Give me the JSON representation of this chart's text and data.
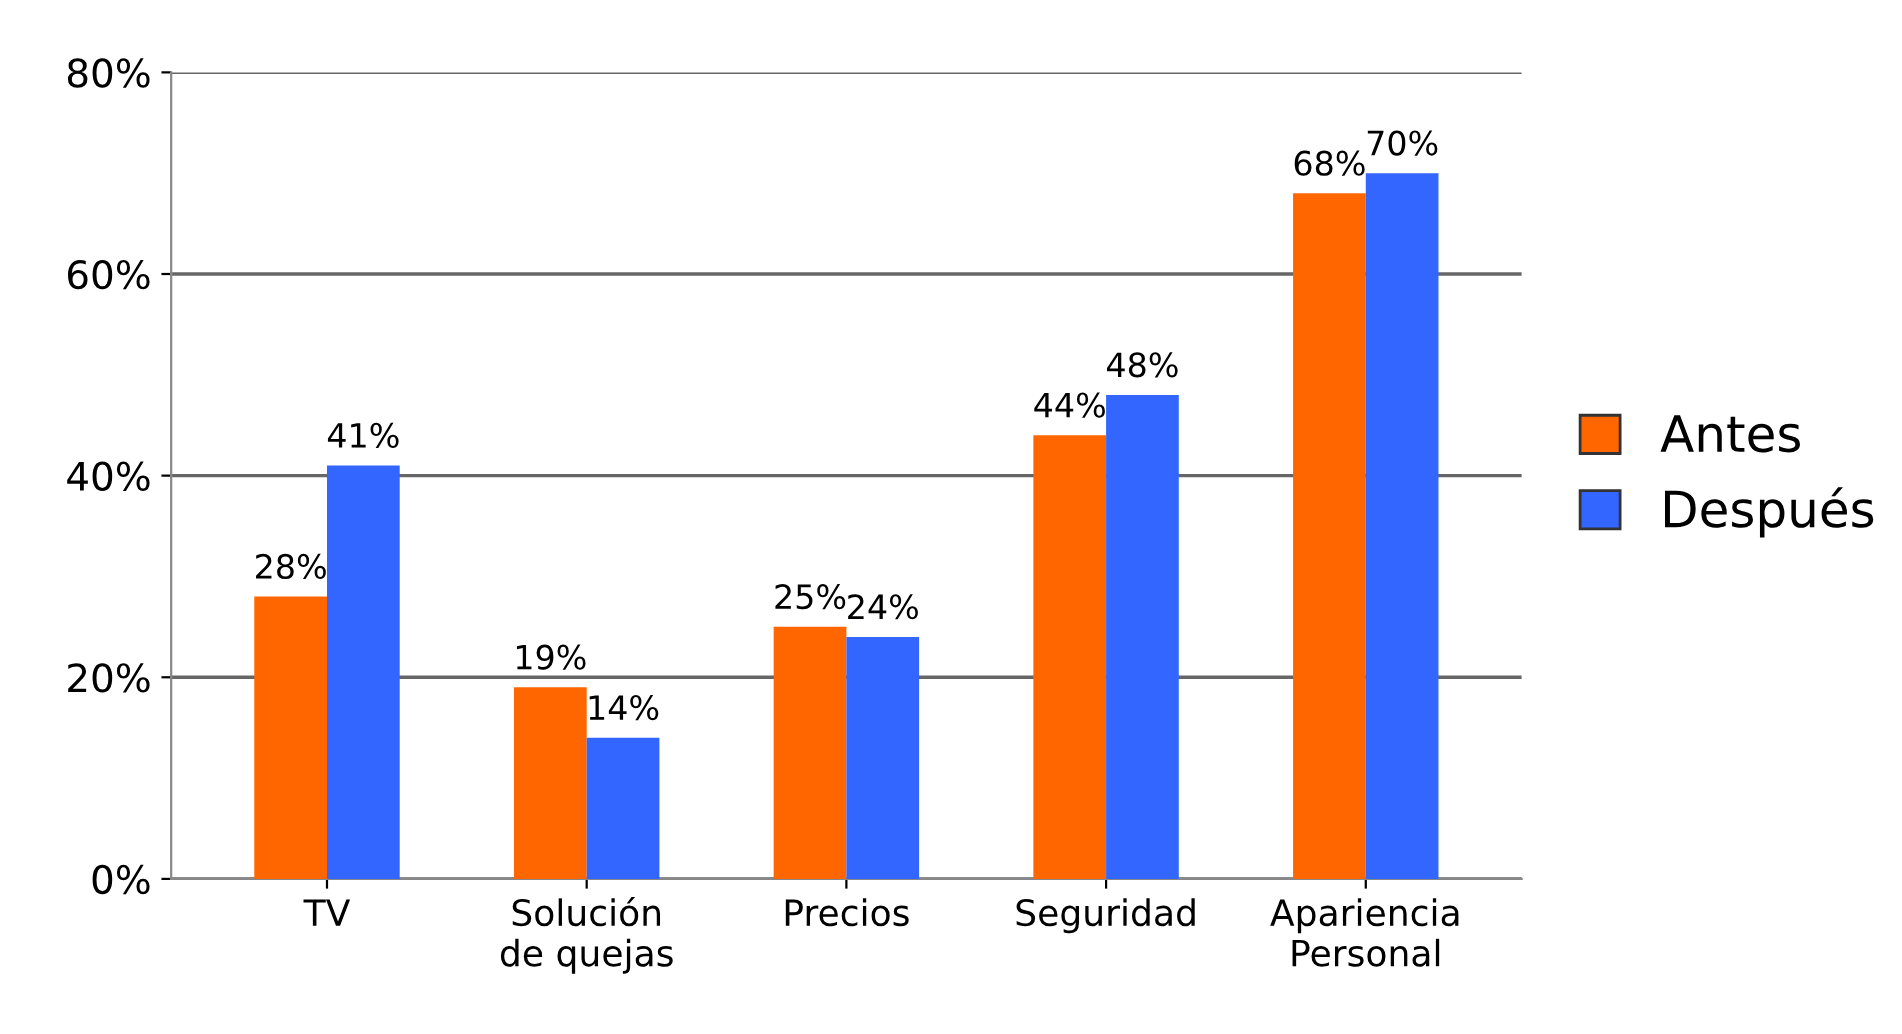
{
  "chart_data": {
    "type": "bar",
    "categories": [
      "TV",
      "Solución de quejas",
      "Precios",
      "Seguridad",
      "Apariencia Personal"
    ],
    "series": [
      {
        "name": "Antes",
        "color": "#ff6600",
        "values": [
          28,
          19,
          25,
          44,
          68
        ],
        "value_labels": [
          "28%",
          "19%",
          "25%",
          "44%",
          "68%"
        ]
      },
      {
        "name": "Después",
        "color": "#3366ff",
        "values": [
          41,
          14,
          24,
          48,
          70
        ],
        "value_labels": [
          "41%",
          "14%",
          "24%",
          "48%",
          "70%"
        ]
      }
    ],
    "ylim": [
      0,
      80
    ],
    "yticks": [
      {
        "value": 0,
        "label": "0%"
      },
      {
        "value": 20,
        "label": "20%"
      },
      {
        "value": 40,
        "label": "40%"
      },
      {
        "value": 60,
        "label": "60%"
      },
      {
        "value": 80,
        "label": "80%"
      }
    ],
    "grid": "y",
    "legend": "right"
  }
}
